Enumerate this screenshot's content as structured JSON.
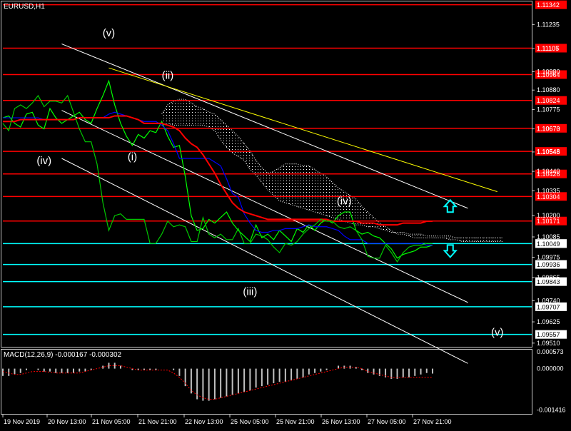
{
  "window": {
    "title": "EURUSD,H1"
  },
  "chart_data": {
    "type": "candlestick",
    "symbol": "EURUSD",
    "timeframe": "H1",
    "title": "EURUSD,H1",
    "y_range": [
      1.0949,
      1.1136
    ],
    "price_axis_ticks": [
      "1.11235",
      "1.11105",
      "1.10980",
      "1.10880",
      "1.10775",
      "1.10670",
      "1.10545",
      "1.10440",
      "1.10335",
      "1.10200",
      "1.10085",
      "1.09975",
      "1.09865",
      "1.09740",
      "1.09625",
      "1.09510"
    ],
    "time_labels": [
      "19 Nov 2019",
      "20 Nov 13:00",
      "21 Nov 05:00",
      "21 Nov 21:00",
      "22 Nov 13:00",
      "25 Nov 05:00",
      "25 Nov 21:00",
      "26 Nov 13:00",
      "27 Nov 05:00",
      "27 Nov 21:00"
    ],
    "levels": [
      {
        "price": "1.11342",
        "value": 1.11342,
        "color": "#ff0000",
        "label_bg": "#ff0000"
      },
      {
        "price": "1.11107",
        "value": 1.11107,
        "color": "#ff0000",
        "label_bg": "#ff0000"
      },
      {
        "price": "1.10964",
        "value": 1.10964,
        "color": "#ff0000",
        "label_bg": "#ff0000"
      },
      {
        "price": "1.10824",
        "value": 1.10824,
        "color": "#ff0000",
        "label_bg": "#ff0000"
      },
      {
        "price": "1.10673",
        "value": 1.10673,
        "color": "#ff0000",
        "label_bg": "#ff0000"
      },
      {
        "price": "1.10548",
        "value": 1.10548,
        "color": "#ff0000",
        "label_bg": "#ff0000"
      },
      {
        "price": "1.10426",
        "value": 1.10426,
        "color": "#ff0000",
        "label_bg": "#ff0000"
      },
      {
        "price": "1.10304",
        "value": 1.10304,
        "color": "#ff0000",
        "label_bg": "#ff0000"
      },
      {
        "price": "1.10171",
        "value": 1.10171,
        "color": "#ff0000",
        "label_bg": "#ff0000"
      },
      {
        "price": "1.10049",
        "value": 1.10049,
        "color": "#00ffff",
        "label_bg": "#ffffff"
      },
      {
        "price": "1.09936",
        "value": 1.09936,
        "color": "#00ffff",
        "label_bg": "#ffffff"
      },
      {
        "price": "1.09843",
        "value": 1.09843,
        "color": "#00ffff",
        "label_bg": "#ffffff"
      },
      {
        "price": "1.09707",
        "value": 1.09707,
        "color": "#00ffff",
        "label_bg": "#ffffff"
      },
      {
        "price": "1.09557",
        "value": 1.09557,
        "color": "#00ffff",
        "label_bg": "#ffffff"
      }
    ],
    "wave_labels": [
      {
        "text": "(v)",
        "bar": 18,
        "price": 1.1117
      },
      {
        "text": "(ii)",
        "bar": 28,
        "price": 1.1094
      },
      {
        "text": "(iv)",
        "bar": 7,
        "price": 1.1048
      },
      {
        "text": "(i)",
        "bar": 22,
        "price": 1.105
      },
      {
        "text": "(iii)",
        "bar": 42,
        "price": 1.0977
      },
      {
        "text": "(iv)",
        "bar": 58,
        "price": 1.1026
      },
      {
        "text": "(v)",
        "bar": 84,
        "price": 1.0955
      }
    ],
    "trend_lines": [
      {
        "color": "#ffffff",
        "from": {
          "bar": 10,
          "price": 1.1113
        },
        "to": {
          "bar": 79,
          "price": 1.1024
        }
      },
      {
        "color": "#ffffff",
        "from": {
          "bar": 10,
          "price": 1.1077
        },
        "to": {
          "bar": 79,
          "price": 1.0973
        }
      },
      {
        "color": "#ffffff",
        "from": {
          "bar": 10,
          "price": 1.1051
        },
        "to": {
          "bar": 79,
          "price": 1.094
        }
      },
      {
        "color": "#ffff00",
        "from": {
          "bar": 18,
          "price": 1.11
        },
        "to": {
          "bar": 84,
          "price": 1.1033
        }
      }
    ],
    "series": [
      {
        "name": "Close",
        "color": "#00ff00",
        "values": [
          1.1073,
          1.1074,
          1.107,
          1.1068,
          1.1075,
          1.1076,
          1.1069,
          1.1067,
          1.1078,
          1.1073,
          1.107,
          1.1072,
          1.1074,
          1.1076,
          1.1072,
          1.107,
          1.1078,
          1.1085,
          1.1093,
          1.108,
          1.107,
          1.1063,
          1.1058,
          1.1064,
          1.1062,
          1.1066,
          1.1065,
          1.1071,
          1.1063,
          1.1057,
          1.1058,
          1.1041,
          1.102,
          1.1012,
          1.1013,
          1.1018,
          1.1016,
          1.1019,
          1.1022,
          1.1016,
          1.1012,
          1.1009,
          1.1006,
          1.1015,
          1.1008,
          1.101,
          1.1007,
          1.1012,
          1.1009,
          1.1006,
          1.1013,
          1.1011,
          1.1015,
          1.1012,
          1.1016,
          1.1018,
          1.1016,
          1.102,
          1.1022,
          1.1022,
          1.1012,
          1.101,
          1.1011,
          1.1009,
          1.1008,
          1.1005,
          1.1002,
          1.0997,
          1.0999,
          1.1,
          1.1001,
          1.1003,
          1.1003,
          1.1004
        ]
      },
      {
        "name": "Blue MA",
        "color": "#0000ff",
        "values": [
          1.1073,
          1.1073,
          1.1073,
          1.1073,
          1.1073,
          1.1073,
          1.1073,
          1.1072,
          1.1072,
          1.1072,
          1.1072,
          1.1072,
          1.1072,
          1.1073,
          1.1073,
          1.1073,
          1.1073,
          1.1073,
          1.1075,
          1.1076,
          1.1075,
          1.1074,
          1.1073,
          1.1072,
          1.1071,
          1.1071,
          1.1071,
          1.1069,
          1.1066,
          1.1059,
          1.1051,
          1.1051,
          1.1051,
          1.1051,
          1.1051,
          1.1051,
          1.1049,
          1.1047,
          1.104,
          1.1032,
          1.103,
          1.1021,
          1.1016,
          1.1012,
          1.1011,
          1.1011,
          1.1012,
          1.1012,
          1.1013,
          1.1013,
          1.1013,
          1.1014,
          1.1015,
          1.1014,
          1.1014,
          1.1014,
          1.1013,
          1.1012,
          1.1009,
          1.1007,
          1.1007,
          1.1007,
          1.1005,
          1.1005,
          1.1005,
          1.1005,
          1.1005,
          1.1005,
          1.1005,
          1.1005,
          1.1005,
          1.1005,
          1.1004,
          1.1004
        ]
      },
      {
        "name": "Red MA",
        "color": "#ff0000",
        "values": [
          1.1071,
          1.1071,
          1.1071,
          1.1072,
          1.1072,
          1.1072,
          1.1072,
          1.1072,
          1.1072,
          1.1072,
          1.1072,
          1.1072,
          1.1072,
          1.1073,
          1.1073,
          1.1073,
          1.1073,
          1.1073,
          1.1073,
          1.1074,
          1.1074,
          1.1074,
          1.1073,
          1.1072,
          1.107,
          1.107,
          1.107,
          1.107,
          1.1069,
          1.1068,
          1.1066,
          1.1062,
          1.1059,
          1.1057,
          1.1053,
          1.1048,
          1.1043,
          1.1037,
          1.1032,
          1.1027,
          1.1024,
          1.1022,
          1.1021,
          1.102,
          1.1019,
          1.1018,
          1.1018,
          1.1018,
          1.1018,
          1.1018,
          1.1018,
          1.1018,
          1.1018,
          1.1018,
          1.1018,
          1.1018,
          1.1017,
          1.1017,
          1.1017,
          1.1017,
          1.1017,
          1.1016,
          1.1016,
          1.1016,
          1.1015,
          1.1015,
          1.1015,
          1.1015,
          1.1016,
          1.1016,
          1.1016,
          1.1016,
          1.1017,
          1.1017
        ]
      },
      {
        "name": "Lagging line",
        "color": "#00c800",
        "values": [
          1.107,
          1.1066,
          1.1078,
          1.108,
          1.1078,
          1.1081,
          1.1085,
          1.1079,
          1.1082,
          1.1082,
          1.1081,
          1.1085,
          1.1076,
          1.1067,
          1.106,
          1.106,
          1.1048,
          1.1027,
          1.1012,
          1.102,
          1.1021,
          1.1018,
          1.1018,
          1.1018,
          1.1018,
          1.1005,
          1.1005,
          1.101,
          1.1017,
          1.1014,
          1.1015,
          1.1014,
          1.1006,
          1.1006,
          1.1019,
          1.101,
          1.1008,
          1.101,
          1.1007,
          1.1007,
          1.1013,
          1.1005,
          1.1005,
          1.101,
          1.1009,
          1.1007,
          1.1003,
          1.1,
          1.1005,
          1.1004,
          1.1006,
          1.101,
          1.1013,
          1.1015,
          1.1018,
          1.1017,
          1.1017,
          1.1014,
          1.1013,
          1.1014,
          1.1012,
          1.1007,
          1.0998,
          1.0997,
          1.0997,
          1.1004,
          1.1,
          1.0995,
          1.1,
          1.1003,
          1.1004,
          1.1004,
          1.1005,
          1.1005
        ]
      },
      {
        "name": "Cloud upper",
        "color": "#ffffff",
        "values": [
          null,
          null,
          null,
          null,
          null,
          null,
          null,
          null,
          null,
          null,
          null,
          null,
          null,
          null,
          null,
          null,
          null,
          null,
          null,
          null,
          null,
          null,
          null,
          null,
          null,
          null,
          null,
          1.1075,
          1.108,
          1.1082,
          1.1083,
          1.1083,
          1.1081,
          1.1079,
          1.1078,
          1.1076,
          1.1075,
          1.1072,
          1.1069,
          1.1066,
          1.1063,
          1.1059,
          1.1055,
          1.105,
          1.1046,
          1.1043,
          1.1044,
          1.1046,
          1.1048,
          1.1048,
          1.1048,
          1.1047,
          1.1047,
          1.1045,
          1.1043,
          1.1041,
          1.1038,
          1.1035,
          1.1033,
          1.1031,
          1.1029,
          1.1025,
          1.1022,
          1.1019,
          1.1016,
          1.1014,
          1.1012,
          1.101,
          1.101,
          1.1009,
          1.1008,
          1.1008,
          1.1008,
          1.1008,
          1.1008,
          1.1008,
          1.1007,
          1.1007,
          1.1006,
          1.1006,
          1.1006,
          1.1006,
          1.1006,
          1.1006,
          1.1006,
          1.1006
        ]
      },
      {
        "name": "Cloud lower",
        "color": "#ffffff",
        "values": [
          null,
          null,
          null,
          null,
          null,
          null,
          null,
          null,
          null,
          null,
          null,
          null,
          null,
          null,
          null,
          null,
          null,
          null,
          null,
          null,
          null,
          null,
          null,
          null,
          null,
          null,
          null,
          1.1069,
          1.107,
          1.1069,
          1.1069,
          1.1069,
          1.1069,
          1.1069,
          1.1069,
          1.1068,
          1.1066,
          1.1061,
          1.1057,
          1.1054,
          1.1052,
          1.105,
          1.1045,
          1.1042,
          1.1038,
          1.1034,
          1.1031,
          1.1028,
          1.1027,
          1.1026,
          1.1025,
          1.1024,
          1.1023,
          1.1022,
          1.1021,
          1.102,
          1.1019,
          1.1018,
          1.1017,
          1.1016,
          1.1015,
          1.1015,
          1.1014,
          1.1014,
          1.1013,
          1.1012,
          1.1011,
          1.1011,
          1.1011,
          1.101,
          1.101,
          1.101,
          1.1009,
          1.1009,
          1.1009,
          1.1009,
          1.1009,
          1.1008,
          1.1008,
          1.1008,
          1.1008,
          1.1008,
          1.1008,
          1.1008,
          1.1008,
          1.1008
        ]
      }
    ],
    "arrows": [
      {
        "direction": "up",
        "bar": 76,
        "price": 1.1025,
        "color": "#00ffff"
      },
      {
        "direction": "down",
        "bar": 76,
        "price": 1.1001,
        "color": "#00ffff"
      }
    ],
    "current_price": "1.10049",
    "indicator": {
      "label": "MACD(12,26,9) -0.000167 -0.000302",
      "y_ticks": [
        "0.000573",
        "0.000000",
        "-0.001416"
      ],
      "y_range": [
        -0.00155,
        0.00065
      ],
      "histogram": [
        -0.00025,
        -0.00025,
        -0.0002,
        -0.00015,
        -5e-05,
        0.0,
        -5e-05,
        -0.0001,
        -0.0001,
        -0.00015,
        -0.00015,
        -0.00015,
        -0.00015,
        -0.0001,
        -0.0001,
        -5e-05,
        0.0,
        0.0001,
        0.0002,
        0.0002,
        0.0001,
        0.0,
        -5e-05,
        -5e-05,
        -5e-05,
        -5e-05,
        -5e-05,
        0.0,
        0.0,
        -5e-05,
        -0.00025,
        -0.0006,
        -0.00085,
        -0.00105,
        -0.0011,
        -0.0011,
        -0.00105,
        -0.001,
        -0.00095,
        -0.0009,
        -0.00085,
        -0.0008,
        -0.00075,
        -0.00065,
        -0.0006,
        -0.00055,
        -0.0005,
        -0.00045,
        -0.00045,
        -0.0004,
        -0.00035,
        -0.0003,
        -0.0002,
        -0.00015,
        -0.0001,
        -5e-05,
        0.0,
        0.0001,
        0.0001,
        0.0001,
        5e-05,
        -5e-05,
        -0.00015,
        -0.0002,
        -0.00025,
        -0.0003,
        -0.00035,
        -0.00035,
        -0.0003,
        -0.0003,
        -0.00025,
        -0.0002,
        -0.00015,
        -0.00017
      ],
      "signal": [
        -0.0001,
        -0.00015,
        -0.0002,
        -0.0002,
        -0.00015,
        -0.0001,
        -0.0001,
        -0.0001,
        -0.00012,
        -0.00015,
        -0.00015,
        -0.00015,
        -0.00015,
        -0.00015,
        -0.0001,
        -5e-05,
        0.0,
        5e-05,
        0.0001,
        0.0001,
        0.0001,
        5e-05,
        0.0,
        -5e-05,
        -5e-05,
        -5e-05,
        -5e-05,
        -5e-05,
        -5e-05,
        -0.00015,
        -0.0003,
        -0.0005,
        -0.00075,
        -0.0009,
        -0.001,
        -0.00105,
        -0.00105,
        -0.001,
        -0.00095,
        -0.0009,
        -0.00085,
        -0.0008,
        -0.00075,
        -0.0007,
        -0.00065,
        -0.0006,
        -0.00055,
        -0.0005,
        -0.00045,
        -0.0004,
        -0.00035,
        -0.0003,
        -0.00025,
        -0.0002,
        -0.00015,
        -0.0001,
        -5e-05,
        0.0,
        5e-05,
        5e-05,
        5e-05,
        0.0,
        -0.0001,
        -0.00015,
        -0.0002,
        -0.00025,
        -0.0003,
        -0.0003,
        -0.0003,
        -0.0003,
        -0.0003,
        -0.0003,
        -0.0003,
        -0.0003
      ]
    }
  }
}
